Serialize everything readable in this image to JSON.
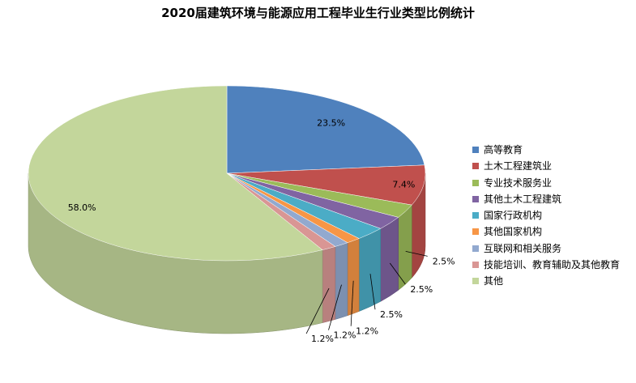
{
  "chart_data": {
    "type": "pie",
    "title": "2020届建筑环境与能源应用工程毕业生行业类型比例统计",
    "legend_position": "right",
    "categories": [
      "高等教育",
      "土木工程建筑业",
      "专业技术服务业",
      "其他土木工程建筑",
      "国家行政机构",
      "其他国家机构",
      "互联网和相关服务",
      "技能培训、教育辅助及其他教育",
      "其他"
    ],
    "values": [
      23.5,
      7.4,
      2.5,
      2.5,
      2.5,
      1.2,
      1.2,
      1.2,
      58.0
    ],
    "value_labels": [
      "23.5%",
      "7.4%",
      "2.5%",
      "2.5%",
      "2.5%",
      "1.2%",
      "1.2%",
      "1.2%",
      "58.0%"
    ],
    "colors": [
      "#4F81BD",
      "#C0504D",
      "#9BBB59",
      "#8064A2",
      "#4BACC6",
      "#F79646",
      "#92A9CF",
      "#D99694",
      "#C3D69B"
    ]
  }
}
